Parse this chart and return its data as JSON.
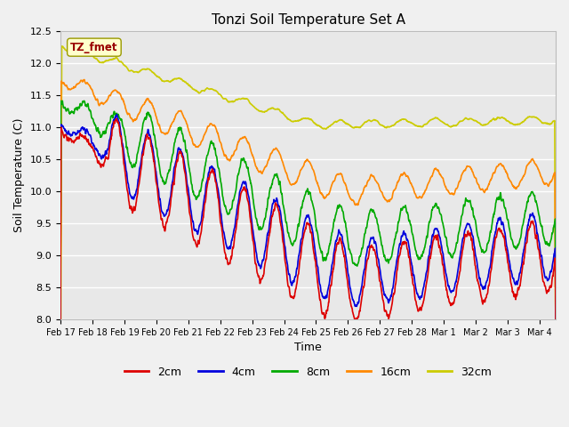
{
  "title": "Tonzi Soil Temperature Set A",
  "xlabel": "Time",
  "ylabel": "Soil Temperature (C)",
  "ylim": [
    8.0,
    12.5
  ],
  "background_color": "#f0f0f0",
  "plot_bg": "#e8e8e8",
  "grid_color": "#ffffff",
  "legend_labels": [
    "2cm",
    "4cm",
    "8cm",
    "16cm",
    "32cm"
  ],
  "legend_colors": [
    "#dd0000",
    "#0000dd",
    "#00aa00",
    "#ff8800",
    "#cccc00"
  ],
  "line_width": 1.2,
  "annotation_text": "TZ_fmet",
  "annotation_bg": "#ffffcc",
  "annotation_fg": "#990000",
  "xtick_labels": [
    "Feb 17",
    "Feb 18",
    "Feb 19",
    "Feb 20",
    "Feb 21",
    "Feb 22",
    "Feb 23",
    "Feb 24",
    "Feb 25",
    "Feb 26",
    "Feb 27",
    "Feb 28",
    "Mar 1",
    "Mar 2",
    "Mar 3",
    "Mar 4"
  ],
  "ytick_values": [
    8.0,
    8.5,
    9.0,
    9.5,
    10.0,
    10.5,
    11.0,
    11.5,
    12.0,
    12.5
  ]
}
